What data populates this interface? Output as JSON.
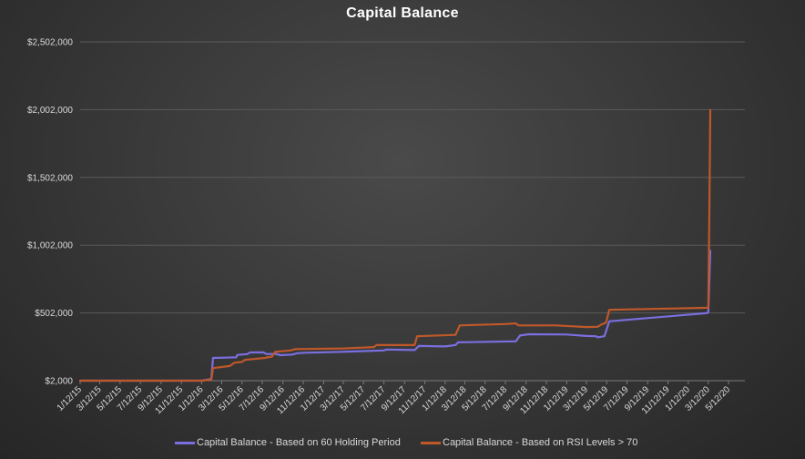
{
  "chart_data": {
    "type": "line",
    "title": "Capital Balance",
    "xlabel": "",
    "ylabel": "",
    "y_ticks": [
      "$2,000",
      "$502,000",
      "$1,002,000",
      "$1,502,000",
      "$2,002,000",
      "$2,502,000"
    ],
    "ylim": [
      2000,
      2502000
    ],
    "x_ticks": [
      "1/12/15",
      "3/12/15",
      "5/12/15",
      "7/12/15",
      "9/12/15",
      "11/12/15",
      "1/12/16",
      "3/12/16",
      "5/12/16",
      "7/12/16",
      "9/12/16",
      "11/12/16",
      "1/12/17",
      "3/12/17",
      "5/12/17",
      "7/12/17",
      "9/12/17",
      "11/12/17",
      "1/12/18",
      "3/12/18",
      "5/12/18",
      "7/12/18",
      "9/12/18",
      "11/12/18",
      "1/12/19",
      "3/12/19",
      "5/12/19",
      "7/12/19",
      "9/12/19",
      "11/12/19",
      "1/12/20",
      "3/12/20",
      "5/12/20"
    ],
    "xlim": [
      "1/12/15",
      "6/30/20"
    ],
    "grid": "horizontal",
    "legend_position": "bottom",
    "series": [
      {
        "name": "Capital Balance - Based on 60 Holding Period",
        "color": "#7b6fe0",
        "points": [
          [
            "1/12/15",
            2000
          ],
          [
            "1/12/16",
            2000
          ],
          [
            "2/10/16",
            15000
          ],
          [
            "2/15/16",
            170000
          ],
          [
            "3/25/16",
            172000
          ],
          [
            "4/25/16",
            175000
          ],
          [
            "4/28/16",
            192000
          ],
          [
            "5/28/16",
            198000
          ],
          [
            "6/5/16",
            210000
          ],
          [
            "7/15/16",
            211000
          ],
          [
            "7/25/16",
            198000
          ],
          [
            "8/20/16",
            200000
          ],
          [
            "9/5/16",
            190000
          ],
          [
            "10/10/16",
            195000
          ],
          [
            "10/25/16",
            205000
          ],
          [
            "11/20/16",
            208000
          ],
          [
            "3/12/17",
            215000
          ],
          [
            "7/12/17",
            225000
          ],
          [
            "7/20/17",
            232000
          ],
          [
            "10/12/17",
            228000
          ],
          [
            "10/25/17",
            258000
          ],
          [
            "1/12/18",
            255000
          ],
          [
            "2/12/18",
            265000
          ],
          [
            "2/20/18",
            285000
          ],
          [
            "8/12/18",
            292000
          ],
          [
            "8/25/18",
            335000
          ],
          [
            "9/20/18",
            345000
          ],
          [
            "1/12/19",
            343000
          ],
          [
            "3/12/19",
            332000
          ],
          [
            "4/10/19",
            330000
          ],
          [
            "4/15/19",
            322000
          ],
          [
            "5/5/19",
            330000
          ],
          [
            "5/20/19",
            440000
          ],
          [
            "3/5/20",
            500000
          ],
          [
            "3/12/20",
            505000
          ],
          [
            "3/18/20",
            960000
          ]
        ]
      },
      {
        "name": "Capital Balance - Based on RSI Levels > 70",
        "color": "#c0582a",
        "points": [
          [
            "1/12/15",
            2000
          ],
          [
            "1/12/16",
            2000
          ],
          [
            "2/10/16",
            10000
          ],
          [
            "2/15/16",
            95000
          ],
          [
            "4/5/16",
            110000
          ],
          [
            "4/20/16",
            135000
          ],
          [
            "5/12/16",
            140000
          ],
          [
            "5/20/16",
            155000
          ],
          [
            "7/20/16",
            170000
          ],
          [
            "8/10/16",
            180000
          ],
          [
            "8/20/16",
            215000
          ],
          [
            "10/5/16",
            225000
          ],
          [
            "10/20/16",
            235000
          ],
          [
            "3/12/17",
            240000
          ],
          [
            "6/12/17",
            250000
          ],
          [
            "6/20/17",
            265000
          ],
          [
            "10/12/17",
            265000
          ],
          [
            "10/20/17",
            330000
          ],
          [
            "2/12/18",
            340000
          ],
          [
            "2/25/18",
            410000
          ],
          [
            "7/12/18",
            420000
          ],
          [
            "8/12/18",
            425000
          ],
          [
            "8/20/18",
            410000
          ],
          [
            "12/12/18",
            410000
          ],
          [
            "3/12/19",
            398000
          ],
          [
            "4/15/19",
            400000
          ],
          [
            "4/25/19",
            415000
          ],
          [
            "5/10/19",
            430000
          ],
          [
            "5/20/19",
            525000
          ],
          [
            "3/12/20",
            540000
          ],
          [
            "3/15/20",
            1200000
          ],
          [
            "3/18/20",
            2000000
          ]
        ]
      }
    ]
  }
}
